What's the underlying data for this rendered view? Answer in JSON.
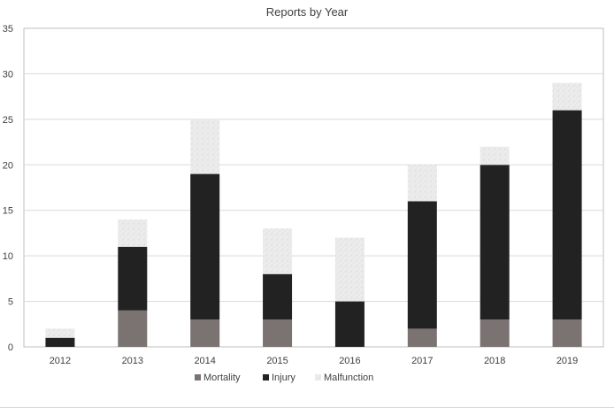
{
  "chart_data": {
    "type": "bar",
    "stacked": true,
    "title": "Reports by Year",
    "xlabel": "",
    "ylabel": "",
    "categories": [
      "2012",
      "2013",
      "2014",
      "2015",
      "2016",
      "2017",
      "2018",
      "2019"
    ],
    "series": [
      {
        "name": "Mortality",
        "color": "#7b7272",
        "values": [
          0,
          4,
          3,
          3,
          0,
          2,
          3,
          3
        ]
      },
      {
        "name": "Injury",
        "color": "#222222",
        "values": [
          1,
          7,
          16,
          5,
          5,
          14,
          17,
          23
        ]
      },
      {
        "name": "Malfunction",
        "color": "#ececec",
        "values": [
          1,
          3,
          6,
          5,
          7,
          4,
          2,
          3
        ]
      }
    ],
    "ylim": [
      0,
      35
    ],
    "yticks": [
      0,
      5,
      10,
      15,
      20,
      25,
      30,
      35
    ],
    "grid": true,
    "legend_position": "bottom"
  }
}
